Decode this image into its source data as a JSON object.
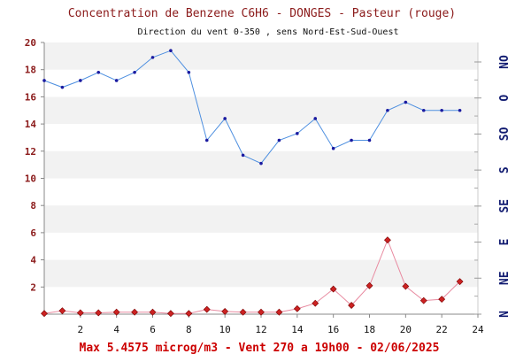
{
  "chart_data": {
    "type": "line",
    "title": "Concentration de Benzene C6H6  -   DONGES - Pasteur (rouge)",
    "subtitle": "Direction du vent 0-350 , sens Nord-Est-Sud-Ouest",
    "footer": "Max 5.4575 microg/m3 - Vent 270  a 19h00 - 02/06/2025",
    "x": [
      0,
      1,
      2,
      3,
      4,
      5,
      6,
      7,
      8,
      9,
      10,
      11,
      12,
      13,
      14,
      15,
      16,
      17,
      18,
      19,
      20,
      21,
      22,
      23
    ],
    "x_ticks": [
      "2",
      "4",
      "6",
      "8",
      "10",
      "12",
      "14",
      "16",
      "18",
      "20",
      "22",
      "24"
    ],
    "y_ticks": [
      "2",
      "4",
      "6",
      "8",
      "10",
      "12",
      "14",
      "16",
      "18",
      "20"
    ],
    "right_ticks": [
      "N",
      "NE",
      "E",
      "SE",
      "S",
      "SO",
      "O",
      "NO"
    ],
    "xlim": [
      0,
      24
    ],
    "ylim": [
      0,
      20
    ],
    "grid": "horizontal bands",
    "series": [
      {
        "kind": "wind-direction",
        "color": "#4f90e0",
        "marker_color": "#1a1aa0",
        "values": [
          17.2,
          16.7,
          17.2,
          17.8,
          17.2,
          17.8,
          18.9,
          19.4,
          17.8,
          12.8,
          14.4,
          11.7,
          11.1,
          12.8,
          13.3,
          14.4,
          12.2,
          12.8,
          12.8,
          15.0,
          15.6,
          15.0,
          15.0,
          15.0
        ]
      },
      {
        "kind": "benzene",
        "color": "#e88aa0",
        "marker_color": "#cc2222",
        "values": [
          0.05,
          0.25,
          0.1,
          0.1,
          0.15,
          0.15,
          0.15,
          0.05,
          0.05,
          0.35,
          0.2,
          0.15,
          0.15,
          0.15,
          0.4,
          0.8,
          1.85,
          0.65,
          2.1,
          5.46,
          2.05,
          1.0,
          1.1,
          2.4
        ]
      }
    ]
  },
  "colors": {
    "title": "#8b1a1a",
    "axis_label": "#8b1a1a",
    "right_axis_label": "#101a70",
    "footer": "#cc0000",
    "band": "#f2f2f2"
  }
}
